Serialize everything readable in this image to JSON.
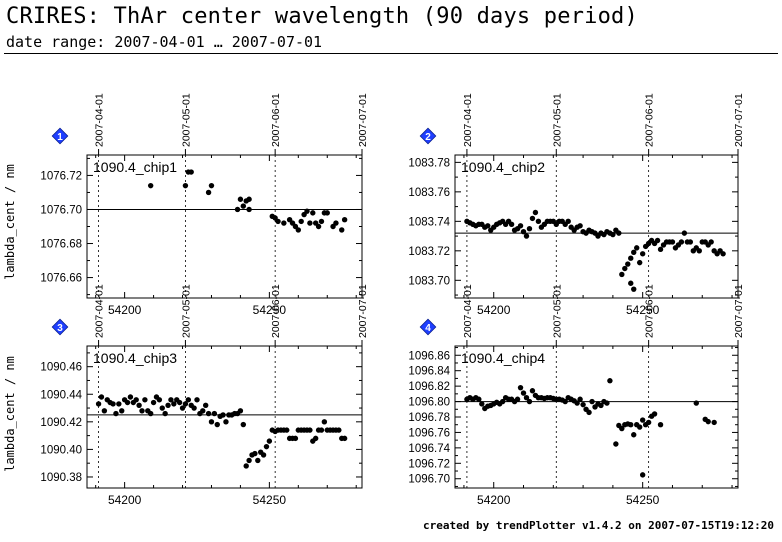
{
  "header": {
    "title": "CRIRES: ThAr center wavelength (90 days period)",
    "subtitle": "date range: 2007-04-01 … 2007-07-01"
  },
  "footer": "created by trendPlotter v1.4.2 on 2007-07-15T19:12:20",
  "y_axis_label": "lambda_cent / nm",
  "colors": {
    "marker_fill": "#1f3fff",
    "marker_text": "#ffffff",
    "ink": "#000000"
  },
  "chart_data": [
    {
      "type": "scatter",
      "marker": "1",
      "label": "1090.4_chip1",
      "xlim": [
        54187,
        54282
      ],
      "ylim": [
        1076.648,
        1076.732
      ],
      "x_ticks": [
        54200,
        54250
      ],
      "y_ticks": [
        1076.66,
        1076.68,
        1076.7,
        1076.72
      ],
      "y_tick_labels": [
        "1076.66",
        "1076.68",
        "1076.70",
        "1076.72"
      ],
      "date_markers": [
        {
          "x": 54191,
          "label": "2007-04-01"
        },
        {
          "x": 54221,
          "label": "2007-05-01"
        },
        {
          "x": 54252,
          "label": "2007-06-01"
        },
        {
          "x": 54282,
          "label": "2007-07-01"
        }
      ],
      "reference_line": 1076.7,
      "points": [
        [
          54209,
          1076.714
        ],
        [
          54221,
          1076.714
        ],
        [
          54222,
          1076.722
        ],
        [
          54223,
          1076.722
        ],
        [
          54229,
          1076.71
        ],
        [
          54230,
          1076.714
        ],
        [
          54239,
          1076.7
        ],
        [
          54240,
          1076.706
        ],
        [
          54241,
          1076.702
        ],
        [
          54242,
          1076.705
        ],
        [
          54243,
          1076.7
        ],
        [
          54243,
          1076.706
        ],
        [
          54251,
          1076.696
        ],
        [
          54252,
          1076.695
        ],
        [
          54253,
          1076.693
        ],
        [
          54255,
          1076.692
        ],
        [
          54257,
          1076.694
        ],
        [
          54258,
          1076.692
        ],
        [
          54259,
          1076.69
        ],
        [
          54260,
          1076.688
        ],
        [
          54261,
          1076.693
        ],
        [
          54262,
          1076.697
        ],
        [
          54263,
          1076.699
        ],
        [
          54264,
          1076.692
        ],
        [
          54265,
          1076.698
        ],
        [
          54266,
          1076.692
        ],
        [
          54267,
          1076.69
        ],
        [
          54268,
          1076.693
        ],
        [
          54269,
          1076.698
        ],
        [
          54270,
          1076.698
        ],
        [
          54272,
          1076.69
        ],
        [
          54273,
          1076.692
        ],
        [
          54275,
          1076.688
        ],
        [
          54276,
          1076.694
        ]
      ]
    },
    {
      "type": "scatter",
      "marker": "2",
      "label": "1090.4_chip2",
      "xlim": [
        54187,
        54282
      ],
      "ylim": [
        1083.688,
        1083.785
      ],
      "x_ticks": [
        54200,
        54250
      ],
      "y_ticks": [
        1083.7,
        1083.72,
        1083.74,
        1083.76,
        1083.78
      ],
      "y_tick_labels": [
        "1083.70",
        "1083.72",
        "1083.74",
        "1083.76",
        "1083.78"
      ],
      "date_markers": [
        {
          "x": 54191,
          "label": "2007-04-01"
        },
        {
          "x": 54221,
          "label": "2007-05-01"
        },
        {
          "x": 54252,
          "label": "2007-06-01"
        },
        {
          "x": 54282,
          "label": "2007-07-01"
        }
      ],
      "reference_line": 1083.732,
      "points": [
        [
          54191,
          1083.74
        ],
        [
          54192,
          1083.739
        ],
        [
          54193,
          1083.738
        ],
        [
          54194,
          1083.737
        ],
        [
          54195,
          1083.738
        ],
        [
          54196,
          1083.738
        ],
        [
          54197,
          1083.736
        ],
        [
          54198,
          1083.737
        ],
        [
          54199,
          1083.734
        ],
        [
          54200,
          1083.736
        ],
        [
          54201,
          1083.738
        ],
        [
          54202,
          1083.739
        ],
        [
          54203,
          1083.74
        ],
        [
          54204,
          1083.738
        ],
        [
          54205,
          1083.74
        ],
        [
          54206,
          1083.738
        ],
        [
          54207,
          1083.734
        ],
        [
          54208,
          1083.735
        ],
        [
          54209,
          1083.737
        ],
        [
          54210,
          1083.733
        ],
        [
          54211,
          1083.73
        ],
        [
          54212,
          1083.735
        ],
        [
          54213,
          1083.742
        ],
        [
          54214,
          1083.746
        ],
        [
          54215,
          1083.74
        ],
        [
          54216,
          1083.736
        ],
        [
          54217,
          1083.738
        ],
        [
          54218,
          1083.74
        ],
        [
          54219,
          1083.74
        ],
        [
          54220,
          1083.74
        ],
        [
          54221,
          1083.738
        ],
        [
          54222,
          1083.74
        ],
        [
          54223,
          1083.74
        ],
        [
          54224,
          1083.738
        ],
        [
          54225,
          1083.74
        ],
        [
          54226,
          1083.736
        ],
        [
          54227,
          1083.734
        ],
        [
          54228,
          1083.736
        ],
        [
          54229,
          1083.737
        ],
        [
          54230,
          1083.733
        ],
        [
          54231,
          1083.732
        ],
        [
          54232,
          1083.734
        ],
        [
          54233,
          1083.733
        ],
        [
          54234,
          1083.732
        ],
        [
          54235,
          1083.73
        ],
        [
          54236,
          1083.732
        ],
        [
          54237,
          1083.731
        ],
        [
          54238,
          1083.733
        ],
        [
          54239,
          1083.732
        ],
        [
          54240,
          1083.731
        ],
        [
          54241,
          1083.734
        ],
        [
          54242,
          1083.732
        ],
        [
          54243,
          1083.704
        ],
        [
          54244,
          1083.708
        ],
        [
          54245,
          1083.711
        ],
        [
          54246,
          1083.715
        ],
        [
          54246,
          1083.698
        ],
        [
          54247,
          1083.694
        ],
        [
          54247,
          1083.719
        ],
        [
          54248,
          1083.722
        ],
        [
          54249,
          1083.712
        ],
        [
          54250,
          1083.718
        ],
        [
          54251,
          1083.723
        ],
        [
          54252,
          1083.725
        ],
        [
          54253,
          1083.727
        ],
        [
          54254,
          1083.725
        ],
        [
          54255,
          1083.727
        ],
        [
          54256,
          1083.721
        ],
        [
          54257,
          1083.724
        ],
        [
          54258,
          1083.726
        ],
        [
          54259,
          1083.726
        ],
        [
          54260,
          1083.726
        ],
        [
          54261,
          1083.722
        ],
        [
          54262,
          1083.724
        ],
        [
          54263,
          1083.726
        ],
        [
          54264,
          1083.732
        ],
        [
          54265,
          1083.726
        ],
        [
          54266,
          1083.726
        ],
        [
          54267,
          1083.72
        ],
        [
          54268,
          1083.722
        ],
        [
          54269,
          1083.72
        ],
        [
          54270,
          1083.726
        ],
        [
          54271,
          1083.726
        ],
        [
          54272,
          1083.724
        ],
        [
          54273,
          1083.726
        ],
        [
          54274,
          1083.72
        ],
        [
          54275,
          1083.718
        ],
        [
          54276,
          1083.72
        ],
        [
          54277,
          1083.718
        ]
      ]
    },
    {
      "type": "scatter",
      "marker": "3",
      "label": "1090.4_chip3",
      "xlim": [
        54187,
        54282
      ],
      "ylim": [
        1090.372,
        1090.475
      ],
      "x_ticks": [
        54200,
        54250
      ],
      "y_ticks": [
        1090.38,
        1090.4,
        1090.42,
        1090.44,
        1090.46
      ],
      "y_tick_labels": [
        "1090.38",
        "1090.40",
        "1090.42",
        "1090.44",
        "1090.46"
      ],
      "date_markers": [
        {
          "x": 54191,
          "label": "2007-04-01"
        },
        {
          "x": 54221,
          "label": "2007-05-01"
        },
        {
          "x": 54252,
          "label": "2007-06-01"
        },
        {
          "x": 54282,
          "label": "2007-07-01"
        }
      ],
      "reference_line": 1090.425,
      "points": [
        [
          54191,
          1090.433
        ],
        [
          54192,
          1090.438
        ],
        [
          54193,
          1090.428
        ],
        [
          54194,
          1090.436
        ],
        [
          54195,
          1090.434
        ],
        [
          54196,
          1090.433
        ],
        [
          54197,
          1090.426
        ],
        [
          54198,
          1090.433
        ],
        [
          54199,
          1090.428
        ],
        [
          54200,
          1090.436
        ],
        [
          54201,
          1090.434
        ],
        [
          54202,
          1090.438
        ],
        [
          54203,
          1090.434
        ],
        [
          54204,
          1090.436
        ],
        [
          54205,
          1090.432
        ],
        [
          54206,
          1090.428
        ],
        [
          54207,
          1090.436
        ],
        [
          54208,
          1090.428
        ],
        [
          54209,
          1090.426
        ],
        [
          54210,
          1090.434
        ],
        [
          54211,
          1090.438
        ],
        [
          54212,
          1090.436
        ],
        [
          54213,
          1090.43
        ],
        [
          54214,
          1090.426
        ],
        [
          54215,
          1090.432
        ],
        [
          54216,
          1090.436
        ],
        [
          54217,
          1090.433
        ],
        [
          54218,
          1090.436
        ],
        [
          54219,
          1090.434
        ],
        [
          54220,
          1090.43
        ],
        [
          54221,
          1090.433
        ],
        [
          54222,
          1090.436
        ],
        [
          54223,
          1090.432
        ],
        [
          54224,
          1090.43
        ],
        [
          54225,
          1090.436
        ],
        [
          54226,
          1090.426
        ],
        [
          54227,
          1090.428
        ],
        [
          54228,
          1090.432
        ],
        [
          54229,
          1090.426
        ],
        [
          54230,
          1090.42
        ],
        [
          54231,
          1090.426
        ],
        [
          54232,
          1090.418
        ],
        [
          54233,
          1090.424
        ],
        [
          54234,
          1090.425
        ],
        [
          54235,
          1090.42
        ],
        [
          54236,
          1090.425
        ],
        [
          54237,
          1090.425
        ],
        [
          54238,
          1090.426
        ],
        [
          54239,
          1090.426
        ],
        [
          54240,
          1090.428
        ],
        [
          54241,
          1090.418
        ],
        [
          54242,
          1090.388
        ],
        [
          54243,
          1090.392
        ],
        [
          54244,
          1090.396
        ],
        [
          54245,
          1090.397
        ],
        [
          54246,
          1090.392
        ],
        [
          54247,
          1090.398
        ],
        [
          54248,
          1090.396
        ],
        [
          54249,
          1090.402
        ],
        [
          54250,
          1090.406
        ],
        [
          54251,
          1090.414
        ],
        [
          54252,
          1090.413
        ],
        [
          54253,
          1090.414
        ],
        [
          54254,
          1090.414
        ],
        [
          54255,
          1090.414
        ],
        [
          54256,
          1090.414
        ],
        [
          54257,
          1090.408
        ],
        [
          54258,
          1090.408
        ],
        [
          54259,
          1090.408
        ],
        [
          54260,
          1090.414
        ],
        [
          54261,
          1090.414
        ],
        [
          54262,
          1090.414
        ],
        [
          54263,
          1090.414
        ],
        [
          54264,
          1090.414
        ],
        [
          54265,
          1090.406
        ],
        [
          54266,
          1090.408
        ],
        [
          54267,
          1090.414
        ],
        [
          54268,
          1090.414
        ],
        [
          54269,
          1090.42
        ],
        [
          54270,
          1090.414
        ],
        [
          54271,
          1090.414
        ],
        [
          54272,
          1090.414
        ],
        [
          54273,
          1090.414
        ],
        [
          54274,
          1090.414
        ],
        [
          54275,
          1090.408
        ],
        [
          54276,
          1090.408
        ]
      ]
    },
    {
      "type": "scatter",
      "marker": "4",
      "label": "1090.4_chip4",
      "xlim": [
        54187,
        54282
      ],
      "ylim": [
        1096.688,
        1096.872
      ],
      "x_ticks": [
        54200,
        54250
      ],
      "y_ticks": [
        1096.7,
        1096.72,
        1096.74,
        1096.76,
        1096.78,
        1096.8,
        1096.82,
        1096.84,
        1096.86
      ],
      "y_tick_labels": [
        "1096.70",
        "1096.72",
        "1096.74",
        "1096.76",
        "1096.78",
        "1096.80",
        "1096.82",
        "1096.84",
        "1096.86"
      ],
      "date_markers": [
        {
          "x": 54191,
          "label": "2007-04-01"
        },
        {
          "x": 54221,
          "label": "2007-05-01"
        },
        {
          "x": 54252,
          "label": "2007-06-01"
        },
        {
          "x": 54282,
          "label": "2007-07-01"
        }
      ],
      "reference_line": 1096.8,
      "points": [
        [
          54191,
          1096.803
        ],
        [
          54192,
          1096.805
        ],
        [
          54193,
          1096.803
        ],
        [
          54194,
          1096.805
        ],
        [
          54195,
          1096.803
        ],
        [
          54196,
          1096.797
        ],
        [
          54197,
          1096.791
        ],
        [
          54198,
          1096.794
        ],
        [
          54199,
          1096.795
        ],
        [
          54200,
          1096.797
        ],
        [
          54201,
          1096.799
        ],
        [
          54202,
          1096.797
        ],
        [
          54203,
          1096.8
        ],
        [
          54204,
          1096.805
        ],
        [
          54205,
          1096.803
        ],
        [
          54206,
          1096.803
        ],
        [
          54207,
          1096.8
        ],
        [
          54208,
          1096.803
        ],
        [
          54209,
          1096.818
        ],
        [
          54210,
          1096.811
        ],
        [
          54211,
          1096.805
        ],
        [
          54212,
          1096.8
        ],
        [
          54213,
          1096.814
        ],
        [
          54214,
          1096.808
        ],
        [
          54215,
          1096.805
        ],
        [
          54216,
          1096.805
        ],
        [
          54217,
          1096.804
        ],
        [
          54218,
          1096.805
        ],
        [
          54219,
          1096.805
        ],
        [
          54220,
          1096.804
        ],
        [
          54221,
          1096.803
        ],
        [
          54222,
          1096.803
        ],
        [
          54223,
          1096.802
        ],
        [
          54224,
          1096.8
        ],
        [
          54225,
          1096.805
        ],
        [
          54226,
          1096.803
        ],
        [
          54227,
          1096.801
        ],
        [
          54228,
          1096.798
        ],
        [
          54229,
          1096.803
        ],
        [
          54230,
          1096.796
        ],
        [
          54231,
          1096.79
        ],
        [
          54232,
          1096.786
        ],
        [
          54233,
          1096.8
        ],
        [
          54234,
          1096.793
        ],
        [
          54235,
          1096.797
        ],
        [
          54236,
          1096.795
        ],
        [
          54237,
          1096.8
        ],
        [
          54238,
          1096.798
        ],
        [
          54239,
          1096.827
        ],
        [
          54241,
          1096.745
        ],
        [
          54242,
          1096.769
        ],
        [
          54243,
          1096.765
        ],
        [
          54244,
          1096.77
        ],
        [
          54245,
          1096.771
        ],
        [
          54246,
          1096.77
        ],
        [
          54247,
          1096.757
        ],
        [
          54248,
          1096.77
        ],
        [
          54249,
          1096.767
        ],
        [
          54250,
          1096.776
        ],
        [
          54250,
          1096.705
        ],
        [
          54251,
          1096.77
        ],
        [
          54252,
          1096.773
        ],
        [
          54253,
          1096.781
        ],
        [
          54254,
          1096.784
        ],
        [
          54256,
          1096.77
        ],
        [
          54268,
          1096.798
        ],
        [
          54271,
          1096.777
        ],
        [
          54272,
          1096.774
        ],
        [
          54274,
          1096.773
        ]
      ]
    }
  ]
}
